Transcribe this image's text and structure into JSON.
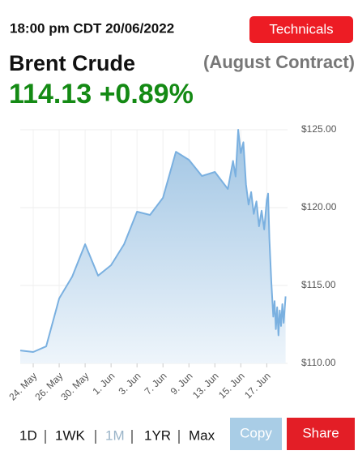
{
  "header": {
    "timestamp": "18:00 pm CDT 20/06/2022",
    "technicals": "Technicals",
    "instrument": "Brent Crude",
    "contract": "(August Contract)",
    "price": "114.13 +0.89%"
  },
  "chart_data": {
    "type": "area",
    "series": [
      {
        "color": "#7ab0e0",
        "x": [
          0,
          1,
          2,
          3,
          4,
          5,
          6,
          7,
          8,
          9,
          10,
          11,
          12,
          13,
          14,
          15,
          16,
          16.4,
          16.6,
          16.8,
          17.0,
          17.2,
          17.4,
          17.6,
          17.8,
          18.0,
          18.2,
          18.4,
          18.6,
          18.8,
          19.0,
          19.1,
          19.2,
          19.35,
          19.5,
          19.6,
          19.7,
          19.8,
          19.9,
          20.0,
          20.1,
          20.2,
          20.3,
          20.45
        ],
        "values": [
          110.83,
          110.73,
          111.09,
          114.17,
          115.57,
          117.65,
          115.63,
          116.3,
          117.65,
          119.74,
          119.53,
          120.63,
          123.59,
          123.07,
          122.03,
          122.29,
          121.2,
          123.0,
          122.0,
          125.0,
          123.5,
          124.2,
          121.5,
          120.2,
          121.0,
          119.6,
          120.4,
          118.8,
          119.8,
          118.6,
          120.5,
          120.9,
          118.0,
          115.2,
          113.0,
          114.0,
          112.2,
          113.6,
          111.8,
          113.4,
          112.4,
          113.8,
          112.6,
          114.3
        ]
      }
    ],
    "xlim": [
      0,
      20.6
    ],
    "xticks": [
      {
        "value": 1,
        "label": "24. May"
      },
      {
        "value": 3,
        "label": "26. May"
      },
      {
        "value": 5,
        "label": "30. May"
      },
      {
        "value": 7,
        "label": "1. Jun"
      },
      {
        "value": 9,
        "label": "3. Jun"
      },
      {
        "value": 11,
        "label": "7. Jun"
      },
      {
        "value": 13,
        "label": "9. Jun"
      },
      {
        "value": 15,
        "label": "13. Jun"
      },
      {
        "value": 17,
        "label": "15. Jun"
      },
      {
        "value": 19,
        "label": "17. Jun"
      }
    ],
    "ylim": [
      110,
      125
    ],
    "yticks": [
      {
        "value": 110,
        "label": "$110.00"
      },
      {
        "value": 115,
        "label": "$115.00"
      },
      {
        "value": 120,
        "label": "$120.00"
      },
      {
        "value": 125,
        "label": "$125.00"
      }
    ],
    "grid": true
  },
  "controls": {
    "ranges": [
      "1D",
      "1WK",
      "1M",
      "1YR",
      "Max"
    ],
    "selected": 2,
    "copy": "Copy",
    "share": "Share"
  }
}
